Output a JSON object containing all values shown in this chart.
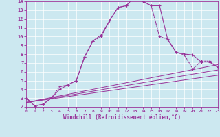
{
  "xlabel": "Windchill (Refroidissement éolien,°C)",
  "xlim": [
    0,
    23
  ],
  "ylim": [
    2,
    14
  ],
  "xticks": [
    0,
    1,
    2,
    3,
    4,
    5,
    6,
    7,
    8,
    9,
    10,
    11,
    12,
    13,
    14,
    15,
    16,
    17,
    18,
    19,
    20,
    21,
    22,
    23
  ],
  "yticks": [
    2,
    3,
    4,
    5,
    6,
    7,
    8,
    9,
    10,
    11,
    12,
    13,
    14
  ],
  "bg_color": "#cce8f0",
  "line_color": "#993399",
  "curve1_x": [
    0,
    1,
    2,
    3,
    4,
    5,
    6,
    7,
    8,
    9,
    10,
    11,
    12,
    13,
    14,
    15,
    16,
    17,
    18,
    19,
    20,
    21,
    22,
    23
  ],
  "curve1_y": [
    3.0,
    2.1,
    2.3,
    3.0,
    4.0,
    4.5,
    5.0,
    7.7,
    9.5,
    10.2,
    11.8,
    13.3,
    13.5,
    14.5,
    14.0,
    13.5,
    13.5,
    9.6,
    8.2,
    8.0,
    7.9,
    7.1,
    7.1,
    6.5
  ],
  "curve2_x": [
    0,
    1,
    2,
    3,
    4,
    5,
    6,
    7,
    8,
    9,
    10,
    11,
    12,
    13,
    14,
    15,
    16,
    17,
    18,
    19,
    20,
    21,
    22,
    23
  ],
  "curve2_y": [
    3.0,
    2.1,
    2.3,
    3.0,
    4.3,
    4.5,
    5.0,
    7.7,
    9.5,
    10.0,
    11.8,
    13.3,
    13.5,
    14.5,
    14.0,
    13.5,
    10.0,
    9.7,
    8.2,
    7.9,
    6.3,
    7.2,
    7.2,
    6.5
  ],
  "line1_x": [
    0,
    23
  ],
  "line1_y": [
    2.5,
    6.8
  ],
  "line2_x": [
    0,
    23
  ],
  "line2_y": [
    2.5,
    6.2
  ],
  "line3_x": [
    0,
    23
  ],
  "line3_y": [
    2.5,
    5.6
  ]
}
